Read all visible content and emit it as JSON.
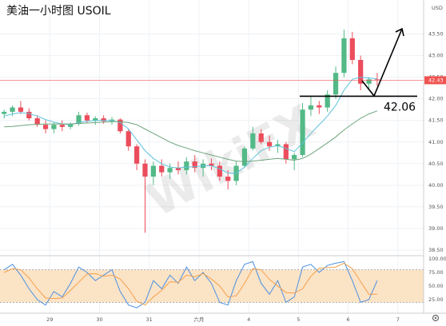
{
  "chart_data": [
    {
      "type": "candlestick",
      "title": "美油一小时图 USOIL",
      "currency": "USD",
      "watermark": "WikiFX",
      "xlim": [
        0,
        51.1
      ],
      "xticks": [
        {
          "value": 6,
          "label": "29"
        },
        {
          "value": 12,
          "label": "30"
        },
        {
          "value": 18,
          "label": "31"
        },
        {
          "value": 24,
          "label": "六月"
        },
        {
          "value": 30,
          "label": "4"
        },
        {
          "value": 36,
          "label": "5"
        },
        {
          "value": 42,
          "label": "6"
        },
        {
          "value": 48,
          "label": "7"
        }
      ],
      "ylim": [
        38.37,
        44.25
      ],
      "yticks": [
        {
          "value": 43.5,
          "label": "43.50"
        },
        {
          "value": 43,
          "label": "43.00"
        },
        {
          "value": 42.5,
          "label": "42.50"
        },
        {
          "value": 42,
          "label": "42.00"
        },
        {
          "value": 41.5,
          "label": "41.50"
        },
        {
          "value": 41,
          "label": "41.00"
        },
        {
          "value": 40.5,
          "label": "40.50"
        },
        {
          "value": 40,
          "label": "40.00"
        },
        {
          "value": 39.5,
          "label": "39.50"
        },
        {
          "value": 39,
          "label": "39.00"
        },
        {
          "value": 38.5,
          "label": "38.50"
        }
      ],
      "grid": true,
      "up_color": "#53b987",
      "down_color": "#eb4d5c",
      "open": [
        41.65,
        41.7,
        41.8,
        41.7,
        41.55,
        41.4,
        41.3,
        41.4,
        41.35,
        41.42,
        41.62,
        41.5,
        41.55,
        41.48,
        41.52,
        41.25,
        40.9,
        40.5,
        40.2,
        40.45,
        40.3,
        40.4,
        40.35,
        40.55,
        40.4,
        40.5,
        40.45,
        40.2,
        40.1,
        40.45,
        40.85,
        41.2,
        41.0,
        40.9,
        40.95,
        40.6,
        40.7,
        41.75,
        41.85,
        41.8,
        42.1,
        42.6,
        43.4,
        42.9,
        42.35,
        42.45
      ],
      "high": [
        41.75,
        41.85,
        41.95,
        41.78,
        41.62,
        41.5,
        41.45,
        41.5,
        41.45,
        41.7,
        41.68,
        41.6,
        41.62,
        41.58,
        41.55,
        41.3,
        40.95,
        40.6,
        40.55,
        40.6,
        40.5,
        40.55,
        40.65,
        40.7,
        40.6,
        40.62,
        40.55,
        40.35,
        40.55,
        40.9,
        41.35,
        41.3,
        41.15,
        41.05,
        41.0,
        40.75,
        41.9,
        42.05,
        41.95,
        42.2,
        42.75,
        43.6,
        43.55,
        43.0,
        42.5,
        42.6
      ],
      "low": [
        41.55,
        41.6,
        41.65,
        41.5,
        41.35,
        41.2,
        41.2,
        41.25,
        41.3,
        41.38,
        41.45,
        41.4,
        41.42,
        41.4,
        41.2,
        40.8,
        40.35,
        38.9,
        40.0,
        40.2,
        40.15,
        40.25,
        40.25,
        40.3,
        40.2,
        40.35,
        40.1,
        39.9,
        40.0,
        40.4,
        40.8,
        40.95,
        40.8,
        40.75,
        40.5,
        40.35,
        40.65,
        41.6,
        41.65,
        41.7,
        42.0,
        42.5,
        42.8,
        42.2,
        42.2,
        42.3
      ],
      "close": [
        41.7,
        41.8,
        41.7,
        41.55,
        41.4,
        41.3,
        41.4,
        41.35,
        41.42,
        41.62,
        41.5,
        41.55,
        41.48,
        41.52,
        41.25,
        40.9,
        40.5,
        40.2,
        40.45,
        40.3,
        40.4,
        40.35,
        40.55,
        40.4,
        40.5,
        40.45,
        40.2,
        40.1,
        40.45,
        40.85,
        41.2,
        41.0,
        40.9,
        40.95,
        40.6,
        40.7,
        41.75,
        41.85,
        41.8,
        42.1,
        42.6,
        43.4,
        42.9,
        42.35,
        42.45,
        42.43
      ],
      "series": [
        {
          "color": "#5fc3dc",
          "values": [
            41.6,
            41.65,
            41.68,
            41.66,
            41.6,
            41.52,
            41.46,
            41.42,
            41.4,
            41.45,
            41.48,
            41.5,
            41.5,
            41.5,
            41.45,
            41.3,
            41.05,
            40.8,
            40.62,
            40.5,
            40.42,
            40.4,
            40.42,
            40.43,
            40.45,
            40.45,
            40.38,
            40.28,
            40.28,
            40.42,
            40.62,
            40.8,
            40.88,
            40.92,
            40.85,
            40.78,
            40.98,
            41.2,
            41.4,
            41.6,
            41.85,
            42.2,
            42.45,
            42.5,
            42.48,
            42.46
          ]
        },
        {
          "color": "#6ea57c",
          "values": [
            41.35,
            41.36,
            41.38,
            41.4,
            41.41,
            41.42,
            41.42,
            41.42,
            41.42,
            41.43,
            41.44,
            41.45,
            41.46,
            41.47,
            41.47,
            41.45,
            41.4,
            41.3,
            41.2,
            41.1,
            41.0,
            40.92,
            40.86,
            40.8,
            40.75,
            40.7,
            40.65,
            40.6,
            40.56,
            40.55,
            40.56,
            40.58,
            40.6,
            40.62,
            40.6,
            40.58,
            40.62,
            40.72,
            40.85,
            40.98,
            41.12,
            41.28,
            41.42,
            41.55,
            41.65,
            41.72
          ]
        }
      ],
      "last_price": 42.43,
      "last_price_color": "#ef5350",
      "support_level": 42.06
    },
    {
      "type": "line",
      "ylim": [
        0,
        100
      ],
      "yticks": [
        {
          "value": 100,
          "label": "100.00"
        },
        {
          "value": 75,
          "label": "75.00"
        },
        {
          "value": 50,
          "label": "50.00"
        },
        {
          "value": 25,
          "label": "25.00"
        }
      ],
      "band": [
        20,
        80
      ],
      "band_color": "#fbe3c6",
      "series": [
        {
          "color": "#4a90e2",
          "values": [
            80,
            90,
            70,
            45,
            25,
            15,
            40,
            30,
            55,
            85,
            75,
            60,
            70,
            80,
            40,
            15,
            10,
            20,
            60,
            45,
            70,
            55,
            85,
            60,
            75,
            55,
            20,
            15,
            60,
            90,
            95,
            55,
            35,
            60,
            20,
            30,
            85,
            90,
            75,
            88,
            92,
            95,
            60,
            20,
            25,
            60
          ]
        },
        {
          "color": "#f5a04a",
          "values": [
            75,
            82,
            80,
            65,
            45,
            28,
            27,
            28,
            42,
            57,
            72,
            73,
            68,
            70,
            63,
            45,
            22,
            15,
            30,
            42,
            58,
            57,
            70,
            67,
            73,
            63,
            50,
            30,
            32,
            55,
            82,
            80,
            62,
            50,
            38,
            37,
            45,
            68,
            83,
            84,
            85,
            92,
            82,
            58,
            35,
            35
          ]
        }
      ]
    }
  ]
}
